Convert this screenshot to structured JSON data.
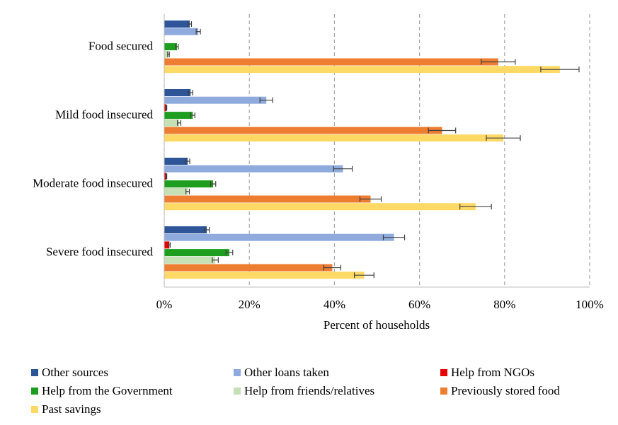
{
  "chart_data": {
    "type": "bar",
    "orientation": "horizontal",
    "categories": [
      "Food secured",
      "Mild food insecured",
      "Moderate food insecured",
      "Severe food insecured"
    ],
    "xlabel": "Percent of households",
    "ylabel": "",
    "xlim": [
      0,
      100
    ],
    "x_ticks": [
      "0%",
      "20%",
      "40%",
      "60%",
      "80%",
      "100%"
    ],
    "grid": "vertical dashed",
    "legend_position": "bottom",
    "series": [
      {
        "name": "Other sources",
        "color": "#2e5597",
        "values": [
          6,
          6.2,
          5.5,
          10
        ],
        "errors": [
          0.4,
          0.5,
          0.5,
          0.6
        ]
      },
      {
        "name": "Other loans taken",
        "color": "#8faadc",
        "values": [
          8,
          24,
          42,
          54
        ],
        "errors": [
          0.5,
          1.5,
          2.2,
          2.5
        ]
      },
      {
        "name": "Help from NGOs",
        "color": "#e60000",
        "values": [
          0,
          0.5,
          0.5,
          1.2
        ],
        "errors": [
          0,
          0.1,
          0.1,
          0.2
        ]
      },
      {
        "name": "Help from the Government",
        "color": "#1e9e1e",
        "values": [
          3,
          6.7,
          11.5,
          15.3
        ],
        "errors": [
          0.3,
          0.5,
          0.6,
          0.8
        ]
      },
      {
        "name": "Help from friends/relatives",
        "color": "#c5e0b4",
        "values": [
          1,
          3.5,
          5.5,
          12
        ],
        "errors": [
          0.2,
          0.4,
          0.4,
          0.7
        ]
      },
      {
        "name": "Previously stored food",
        "color": "#ed7d31",
        "values": [
          78.5,
          65.3,
          48.5,
          39.5
        ],
        "errors": [
          4,
          3.2,
          2.5,
          2
        ]
      },
      {
        "name": "Past savings",
        "color": "#ffd966",
        "values": [
          93,
          79.7,
          73.2,
          47
        ],
        "errors": [
          4.5,
          4,
          3.7,
          2.3
        ]
      }
    ]
  }
}
